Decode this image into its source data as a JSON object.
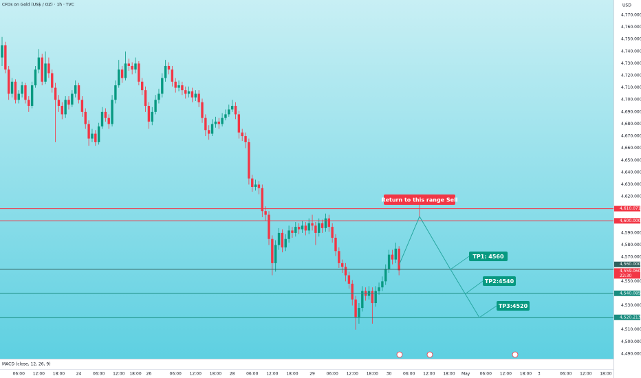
{
  "chart_data": {
    "type": "candlestick",
    "title": "CFDs on Gold (US$ / OZ) · 1h · TVC",
    "currency": "USD",
    "indicator": "MACD (close, 12, 26, 9)",
    "up_color": "#089981",
    "down_color": "#f23645",
    "ylim": [
      4486,
      4782.5
    ],
    "xlim": [
      -0.62,
      183.3
    ],
    "yticks": [
      {
        "value": 4490,
        "label": "4,490.000"
      },
      {
        "value": 4500,
        "label": "4,500.000"
      },
      {
        "value": 4510,
        "label": "4,510.000"
      },
      {
        "value": 4530,
        "label": "4,530.000"
      },
      {
        "value": 4550,
        "label": "4,550.000"
      },
      {
        "value": 4570,
        "label": "4,570.000"
      },
      {
        "value": 4580,
        "label": "4,580.000"
      },
      {
        "value": 4590,
        "label": "4,590.000"
      },
      {
        "value": 4620,
        "label": "4,620.000"
      },
      {
        "value": 4630,
        "label": "4,630.000"
      },
      {
        "value": 4640,
        "label": "4,640.000"
      },
      {
        "value": 4650,
        "label": "4,650.000"
      },
      {
        "value": 4660,
        "label": "4,660.000"
      },
      {
        "value": 4670,
        "label": "4,670.000"
      },
      {
        "value": 4680,
        "label": "4,680.000"
      },
      {
        "value": 4690,
        "label": "4,690.000"
      },
      {
        "value": 4700,
        "label": "4,700.000"
      },
      {
        "value": 4710,
        "label": "4,710.000"
      },
      {
        "value": 4720,
        "label": "4,720.000"
      },
      {
        "value": 4730,
        "label": "4,730.000"
      },
      {
        "value": 4740,
        "label": "4,740.000"
      },
      {
        "value": 4750,
        "label": "4,750.000"
      },
      {
        "value": 4760,
        "label": "4,760.000"
      },
      {
        "value": 4770,
        "label": "4,770.000"
      }
    ],
    "xticks": [
      {
        "value": 5,
        "label": "06:00"
      },
      {
        "value": 11,
        "label": "12:00"
      },
      {
        "value": 17,
        "label": "18:00"
      },
      {
        "value": 23,
        "label": "24"
      },
      {
        "value": 29,
        "label": "06:00"
      },
      {
        "value": 35,
        "label": "12:00"
      },
      {
        "value": 40,
        "label": "18:00"
      },
      {
        "value": 44,
        "label": "26"
      },
      {
        "value": 52,
        "label": "06:00"
      },
      {
        "value": 58,
        "label": "12:00"
      },
      {
        "value": 64,
        "label": "18:00"
      },
      {
        "value": 69,
        "label": "28"
      },
      {
        "value": 75,
        "label": "06:00"
      },
      {
        "value": 81,
        "label": "12:00"
      },
      {
        "value": 87,
        "label": "18:00"
      },
      {
        "value": 93,
        "label": "29"
      },
      {
        "value": 99,
        "label": "06:00"
      },
      {
        "value": 105,
        "label": "12:00"
      },
      {
        "value": 111,
        "label": "18:00"
      },
      {
        "value": 116,
        "label": "30"
      },
      {
        "value": 122,
        "label": "06:00"
      },
      {
        "value": 128,
        "label": "12:00"
      },
      {
        "value": 134,
        "label": "18:00"
      },
      {
        "value": 139,
        "label": "May"
      },
      {
        "value": 145,
        "label": "06:00"
      },
      {
        "value": 151,
        "label": "12:00"
      },
      {
        "value": 157,
        "label": "18:00"
      },
      {
        "value": 161,
        "label": "3"
      },
      {
        "value": 169,
        "label": "06:00"
      },
      {
        "value": 175,
        "label": "12:00"
      },
      {
        "value": 181,
        "label": "18:00"
      }
    ],
    "candles": [
      [
        4735,
        4752,
        4728,
        4745
      ],
      [
        4745,
        4748,
        4722,
        4725
      ],
      [
        4725,
        4728,
        4700,
        4705
      ],
      [
        4705,
        4718,
        4702,
        4715
      ],
      [
        4715,
        4717,
        4697,
        4700
      ],
      [
        4700,
        4708,
        4697,
        4705
      ],
      [
        4705,
        4715,
        4702,
        4712
      ],
      [
        4712,
        4714,
        4697,
        4700
      ],
      [
        4700,
        4703,
        4690,
        4695
      ],
      [
        4695,
        4715,
        4693,
        4712
      ],
      [
        4712,
        4728,
        4710,
        4725
      ],
      [
        4725,
        4742,
        4722,
        4735
      ],
      [
        4735,
        4738,
        4712,
        4715
      ],
      [
        4715,
        4740,
        4713,
        4730
      ],
      [
        4730,
        4735,
        4718,
        4722
      ],
      [
        4722,
        4725,
        4706,
        4710
      ],
      [
        4710,
        4714,
        4665,
        4700
      ],
      [
        4700,
        4704,
        4690,
        4695
      ],
      [
        4695,
        4698,
        4684,
        4688
      ],
      [
        4688,
        4703,
        4685,
        4700
      ],
      [
        4700,
        4703,
        4692,
        4696
      ],
      [
        4696,
        4708,
        4694,
        4705
      ],
      [
        4705,
        4716,
        4702,
        4712
      ],
      [
        4712,
        4714,
        4697,
        4700
      ],
      [
        4700,
        4703,
        4686,
        4690
      ],
      [
        4690,
        4693,
        4676,
        4680
      ],
      [
        4680,
        4683,
        4662,
        4668
      ],
      [
        4668,
        4676,
        4665,
        4672
      ],
      [
        4672,
        4675,
        4662,
        4665
      ],
      [
        4665,
        4681,
        4663,
        4678
      ],
      [
        4678,
        4694,
        4676,
        4690
      ],
      [
        4690,
        4693,
        4682,
        4685
      ],
      [
        4685,
        4688,
        4676,
        4680
      ],
      [
        4680,
        4704,
        4678,
        4700
      ],
      [
        4700,
        4716,
        4697,
        4712
      ],
      [
        4712,
        4733,
        4710,
        4725
      ],
      [
        4725,
        4728,
        4714,
        4718
      ],
      [
        4718,
        4740,
        4716,
        4730
      ],
      [
        4730,
        4734,
        4724,
        4728
      ],
      [
        4728,
        4731,
        4721,
        4725
      ],
      [
        4725,
        4735,
        4722,
        4730
      ],
      [
        4730,
        4732,
        4712,
        4715
      ],
      [
        4715,
        4718,
        4704,
        4708
      ],
      [
        4708,
        4711,
        4690,
        4695
      ],
      [
        4695,
        4698,
        4676,
        4682
      ],
      [
        4682,
        4694,
        4679,
        4690
      ],
      [
        4690,
        4704,
        4688,
        4700
      ],
      [
        4700,
        4709,
        4697,
        4705
      ],
      [
        4705,
        4722,
        4702,
        4718
      ],
      [
        4718,
        4733,
        4715,
        4728
      ],
      [
        4728,
        4731,
        4721,
        4725
      ],
      [
        4725,
        4728,
        4711,
        4715
      ],
      [
        4715,
        4718,
        4706,
        4710
      ],
      [
        4710,
        4716,
        4707,
        4712
      ],
      [
        4712,
        4715,
        4704,
        4708
      ],
      [
        4708,
        4711,
        4701,
        4705
      ],
      [
        4705,
        4711,
        4702,
        4707
      ],
      [
        4707,
        4710,
        4698,
        4702
      ],
      [
        4702,
        4708,
        4699,
        4705
      ],
      [
        4705,
        4708,
        4694,
        4698
      ],
      [
        4698,
        4701,
        4681,
        4685
      ],
      [
        4685,
        4688,
        4670,
        4675
      ],
      [
        4675,
        4679,
        4667,
        4672
      ],
      [
        4672,
        4684,
        4670,
        4680
      ],
      [
        4680,
        4686,
        4677,
        4682
      ],
      [
        4682,
        4685,
        4676,
        4680
      ],
      [
        4680,
        4689,
        4678,
        4685
      ],
      [
        4685,
        4692,
        4683,
        4688
      ],
      [
        4688,
        4696,
        4686,
        4692
      ],
      [
        4692,
        4700,
        4690,
        4695
      ],
      [
        4695,
        4698,
        4684,
        4688
      ],
      [
        4688,
        4691,
        4668,
        4673
      ],
      [
        4673,
        4676,
        4666,
        4670
      ],
      [
        4670,
        4673,
        4660,
        4665
      ],
      [
        4665,
        4668,
        4630,
        4635
      ],
      [
        4635,
        4638,
        4624,
        4628
      ],
      [
        4628,
        4634,
        4625,
        4630
      ],
      [
        4630,
        4633,
        4622,
        4627
      ],
      [
        4627,
        4630,
        4603,
        4608
      ],
      [
        4608,
        4612,
        4600,
        4605
      ],
      [
        4605,
        4608,
        4580,
        4585
      ],
      [
        4585,
        4588,
        4555,
        4565
      ],
      [
        4565,
        4584,
        4558,
        4580
      ],
      [
        4580,
        4594,
        4576,
        4590
      ],
      [
        4590,
        4593,
        4574,
        4578
      ],
      [
        4578,
        4589,
        4575,
        4585
      ],
      [
        4585,
        4596,
        4582,
        4592
      ],
      [
        4592,
        4595,
        4586,
        4590
      ],
      [
        4590,
        4599,
        4587,
        4595
      ],
      [
        4595,
        4598,
        4589,
        4593
      ],
      [
        4593,
        4600,
        4590,
        4596
      ],
      [
        4596,
        4599,
        4588,
        4592
      ],
      [
        4592,
        4602,
        4589,
        4598
      ],
      [
        4598,
        4605,
        4592,
        4596
      ],
      [
        4596,
        4599,
        4580,
        4590
      ],
      [
        4590,
        4602,
        4587,
        4598
      ],
      [
        4598,
        4601,
        4590,
        4594
      ],
      [
        4594,
        4606,
        4591,
        4602
      ],
      [
        4602,
        4605,
        4591,
        4595
      ],
      [
        4595,
        4598,
        4582,
        4586
      ],
      [
        4586,
        4589,
        4571,
        4575
      ],
      [
        4575,
        4578,
        4561,
        4565
      ],
      [
        4565,
        4568,
        4557,
        4562
      ],
      [
        4562,
        4565,
        4550,
        4555
      ],
      [
        4555,
        4558,
        4544,
        4548
      ],
      [
        4548,
        4551,
        4530,
        4535
      ],
      [
        4535,
        4538,
        4510,
        4520
      ],
      [
        4520,
        4532,
        4515,
        4528
      ],
      [
        4528,
        4546,
        4525,
        4542
      ],
      [
        4542,
        4545,
        4534,
        4538
      ],
      [
        4538,
        4546,
        4535,
        4542
      ],
      [
        4542,
        4545,
        4515,
        4532
      ],
      [
        4532,
        4546,
        4529,
        4542
      ],
      [
        4542,
        4549,
        4539,
        4545
      ],
      [
        4545,
        4554,
        4542,
        4550
      ],
      [
        4550,
        4564,
        4547,
        4560
      ],
      [
        4560,
        4576,
        4557,
        4572
      ],
      [
        4572,
        4576,
        4564,
        4568
      ],
      [
        4568,
        4582,
        4565,
        4577
      ],
      [
        4577,
        4579,
        4555,
        4559.06
      ]
    ],
    "levels": [
      {
        "value": 4610.071,
        "label": "4,610.071",
        "color": "#f23645"
      },
      {
        "value": 4600,
        "label": "4,600.000",
        "color": "#f23645"
      },
      {
        "value": 4560,
        "label": "4,560.000",
        "color": "#2f5f5c"
      },
      {
        "value": 4540.085,
        "label": "4,540.085",
        "color": "#1a8c7f"
      },
      {
        "value": 4520.213,
        "label": "4,520.213",
        "color": "#1a8c7f"
      }
    ],
    "last_price": {
      "value": 4559.06,
      "label": "4,559.060",
      "countdown": "22:30",
      "color": "#f23645"
    },
    "annotations": [
      {
        "text": "Return to this range Sell",
        "color": "#f23645"
      },
      {
        "text": "TP1:  4560",
        "color": "#089981"
      },
      {
        "text": "TP2:4540",
        "color": "#089981"
      },
      {
        "text": "TP3:4520",
        "color": "#089981"
      }
    ]
  }
}
